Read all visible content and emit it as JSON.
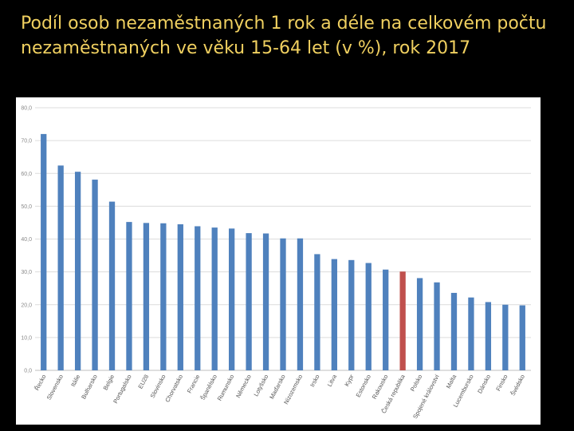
{
  "slide": {
    "title": "Podíl osob nezaměstnaných 1 rok a déle na celkovém počtu nezaměstnaných ve věku 15-64 let (v %), rok 2017"
  },
  "colors": {
    "background": "#000000",
    "title": "#f0d060",
    "bar": "#4f81bd",
    "highlight_bar": "#c0504d"
  },
  "chart_data": {
    "type": "bar",
    "title": "",
    "xlabel": "",
    "ylabel": "",
    "ylim": [
      0,
      80
    ],
    "yticks": [
      "0,0",
      "10,0",
      "20,0",
      "30,0",
      "40,0",
      "50,0",
      "60,0",
      "70,0",
      "80,0"
    ],
    "grid": true,
    "legend": "none",
    "categories": [
      "Řecko",
      "Slovensko",
      "Itálie",
      "Bulharsko",
      "Belgie",
      "Portugalsko",
      "EU28",
      "Slovinsko",
      "Chorvatsko",
      "Francie",
      "Španělsko",
      "Rumunsko",
      "Německo",
      "Lotyšsko",
      "Maďarsko",
      "Nizozemsko",
      "Irsko",
      "Litva",
      "Kypr",
      "Estonsko",
      "Rakousko",
      "Česká republika",
      "Polsko",
      "Spojené království",
      "Malta",
      "Lucembursko",
      "Dánsko",
      "Finsko",
      "Švédsko"
    ],
    "values": [
      72.0,
      62.4,
      60.5,
      58.1,
      51.4,
      45.2,
      44.9,
      44.8,
      44.5,
      43.9,
      43.5,
      43.2,
      41.8,
      41.7,
      40.2,
      40.2,
      35.4,
      33.9,
      33.6,
      32.7,
      30.7,
      30.1,
      28.1,
      26.8,
      23.6,
      22.2,
      20.8,
      20.0,
      19.8
    ],
    "highlight_category": "Česká republika"
  }
}
